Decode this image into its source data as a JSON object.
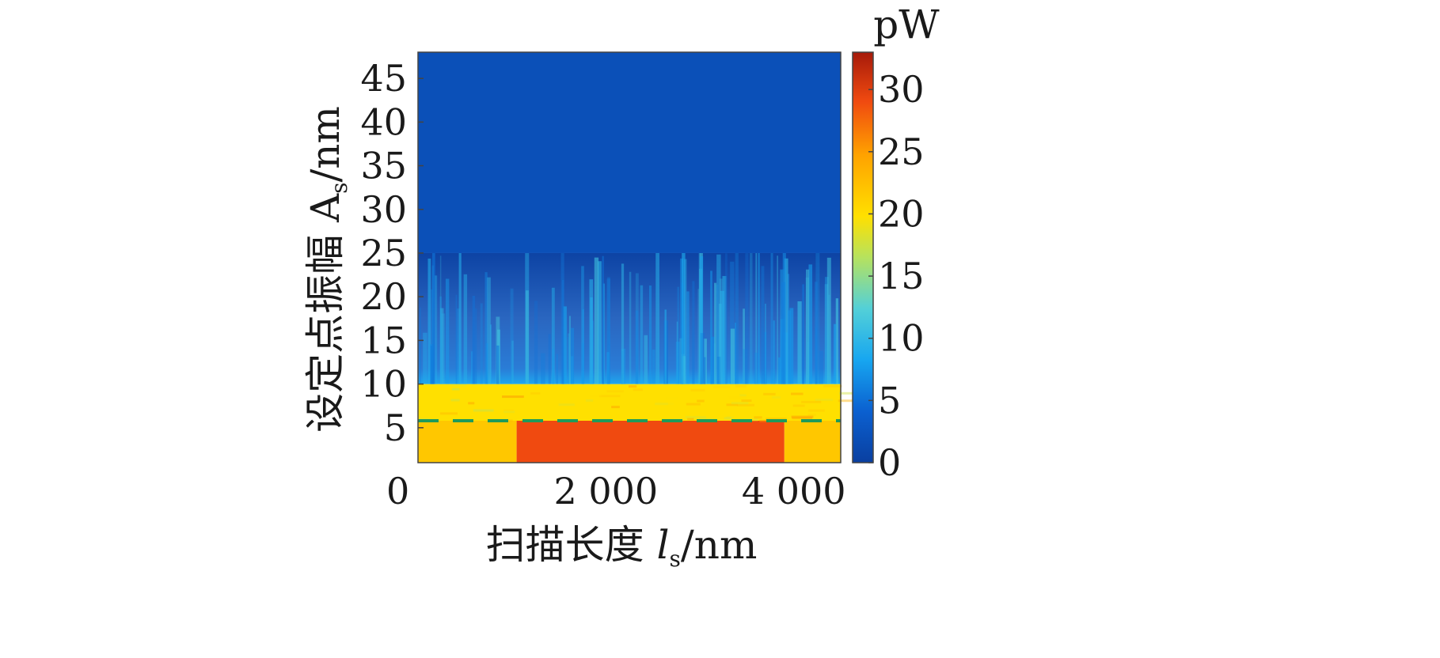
{
  "chart_data": {
    "type": "heatmap",
    "colorscale": "jet",
    "colors": {
      "low": "#0a3fa0",
      "mid": "#ffe000",
      "high": "#a61a0a",
      "dashed_line": "#1f9a5a"
    },
    "xlabel": {
      "prefix": "扫描长度 ",
      "symbol": "l",
      "subscript": "s",
      "unit": "/nm"
    },
    "ylabel": {
      "prefix": "设定点振幅 ",
      "symbol": "A",
      "subscript": "s",
      "unit": "/nm"
    },
    "colorbar_unit": "pW",
    "xlim": [
      0,
      4500
    ],
    "ylim": [
      1,
      48
    ],
    "clim": [
      0,
      33
    ],
    "x_ticks": [
      {
        "value": 0,
        "label": "0"
      },
      {
        "value": 2000,
        "label": "2 000"
      },
      {
        "value": 4000,
        "label": "4 000"
      }
    ],
    "y_ticks": [
      {
        "value": 5,
        "label": "5"
      },
      {
        "value": 10,
        "label": "10"
      },
      {
        "value": 15,
        "label": "15"
      },
      {
        "value": 20,
        "label": "20"
      },
      {
        "value": 25,
        "label": "25"
      },
      {
        "value": 30,
        "label": "30"
      },
      {
        "value": 35,
        "label": "35"
      },
      {
        "value": 40,
        "label": "40"
      },
      {
        "value": 45,
        "label": "45"
      }
    ],
    "colorbar_ticks": [
      {
        "value": 0,
        "label": "0"
      },
      {
        "value": 5,
        "label": "5"
      },
      {
        "value": 10,
        "label": "10"
      },
      {
        "value": 15,
        "label": "15"
      },
      {
        "value": 20,
        "label": "20"
      },
      {
        "value": 25,
        "label": "25"
      },
      {
        "value": 30,
        "label": "30"
      }
    ],
    "reference_line": {
      "y": 5.8,
      "style": "dashed"
    },
    "regions": [
      {
        "name": "low-amplitude band, edges",
        "x_range": [
          0,
          1050
        ],
        "y_range": [
          1,
          5.8
        ],
        "value": 22
      },
      {
        "name": "low-amplitude band, center",
        "x_range": [
          1050,
          3900
        ],
        "y_range": [
          1,
          5.8
        ],
        "value": 29
      },
      {
        "name": "low-amplitude band, right edge",
        "x_range": [
          3900,
          4500
        ],
        "y_range": [
          1,
          5.8
        ],
        "value": 22
      },
      {
        "name": "transition band",
        "x_range": [
          0,
          4500
        ],
        "y_range": [
          5.8,
          10
        ],
        "value": 20
      },
      {
        "name": "rough band",
        "x_range": [
          0,
          4500
        ],
        "y_range": [
          10,
          25
        ],
        "value": 6
      },
      {
        "name": "high-amplitude region",
        "x_range": [
          0,
          4500
        ],
        "y_range": [
          25,
          48
        ],
        "value": 2
      }
    ]
  }
}
